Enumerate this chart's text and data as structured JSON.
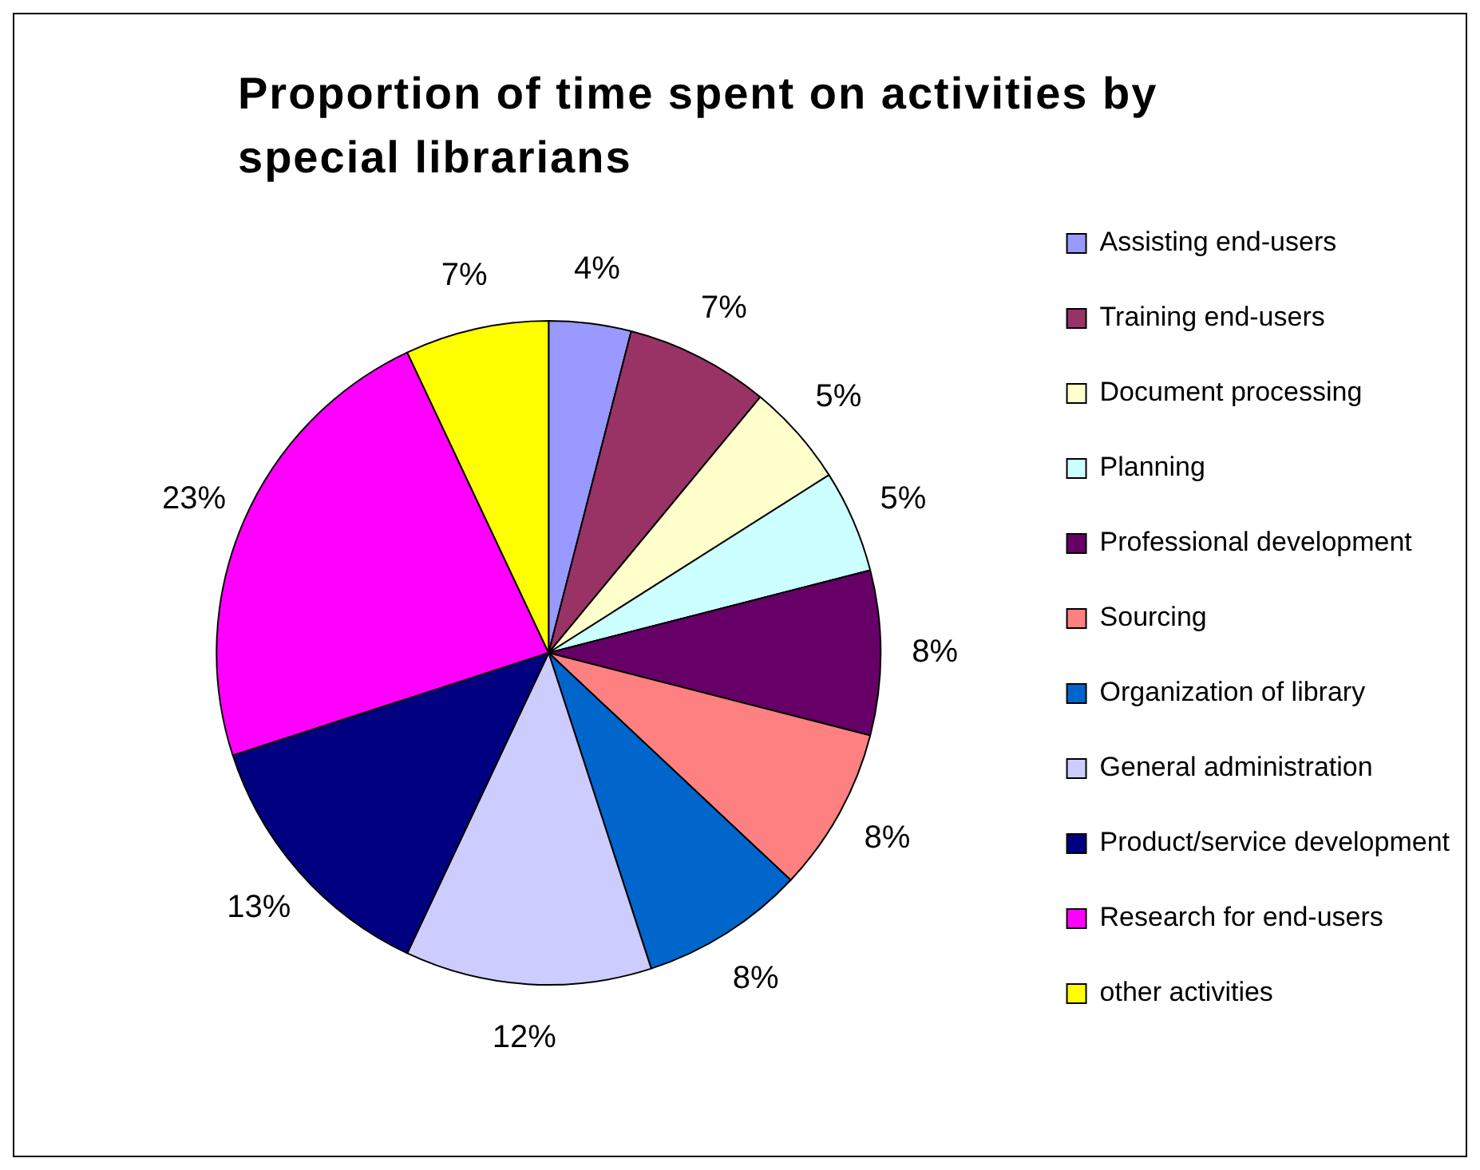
{
  "chart_data": {
    "type": "pie",
    "title": "Proportion of time spent on activities by special librarians",
    "categories": [
      "Assisting end-users",
      "Training end-users",
      "Document processing",
      "Planning",
      "Professional development",
      "Sourcing",
      "Organization of library",
      "General administration",
      "Product/service development",
      "Research for end-users",
      "other activities"
    ],
    "values": [
      4,
      7,
      5,
      5,
      8,
      8,
      8,
      12,
      13,
      23,
      7
    ],
    "colors": [
      "#9999ff",
      "#993366",
      "#ffffcc",
      "#ccffff",
      "#660066",
      "#ff8080",
      "#0066cc",
      "#ccccff",
      "#000080",
      "#ff00ff",
      "#ffff00"
    ],
    "value_labels": [
      "4%",
      "7%",
      "5%",
      "5%",
      "8%",
      "8%",
      "8%",
      "12%",
      "13%",
      "23%",
      "7%"
    ],
    "legend": "right"
  }
}
